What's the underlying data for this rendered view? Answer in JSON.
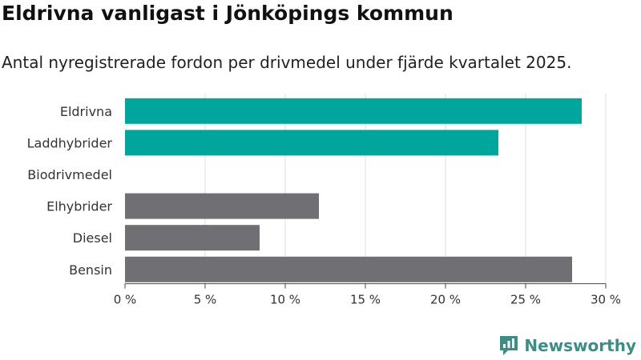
{
  "chart_data": {
    "type": "bar",
    "orientation": "horizontal",
    "title": "Eldrivna vanligast i Jönköpings kommun",
    "subtitle": "Antal nyregistrerade fordon per drivmedel under fjärde kvartalet 2025.",
    "categories": [
      "Eldrivna",
      "Laddhybrider",
      "Biodrivmedel",
      "Elhybrider",
      "Diesel",
      "Bensin"
    ],
    "values": [
      28.5,
      23.3,
      0,
      12.1,
      8.4,
      27.9
    ],
    "bar_colors": [
      "#00a69c",
      "#00a69c",
      "#00a69c",
      "#6f6f74",
      "#6f6f74",
      "#6f6f74"
    ],
    "xlim": [
      0,
      30
    ],
    "x_ticks": [
      0,
      5,
      10,
      15,
      20,
      25,
      30
    ],
    "x_tick_labels": [
      "0 %",
      "5 %",
      "10 %",
      "15 %",
      "20 %",
      "25 %",
      "30 %"
    ],
    "grid": true,
    "xlabel": "",
    "ylabel": ""
  },
  "branding": {
    "logo_text": "Newsworthy",
    "logo_icon": "newsworthy-chart-icon",
    "logo_color": "#3d8c85"
  }
}
